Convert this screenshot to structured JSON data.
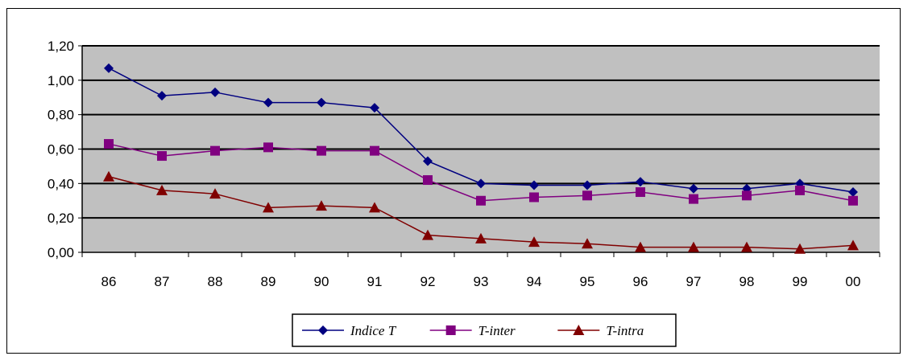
{
  "chart_data": {
    "type": "line",
    "categories": [
      "86",
      "87",
      "88",
      "89",
      "90",
      "91",
      "92",
      "93",
      "94",
      "95",
      "96",
      "97",
      "98",
      "99",
      "00"
    ],
    "ylim": [
      0,
      1.2
    ],
    "yticks": [
      "0,00",
      "0,20",
      "0,40",
      "0,60",
      "0,80",
      "1,00",
      "1,20"
    ],
    "grid": true,
    "plot_background": "#c0c0c0",
    "legend_position": "bottom-center",
    "series": [
      {
        "name": "Indice T",
        "color": "#000080",
        "marker": "diamond",
        "values": [
          1.07,
          0.91,
          0.93,
          0.87,
          0.87,
          0.84,
          0.53,
          0.4,
          0.39,
          0.39,
          0.41,
          0.37,
          0.37,
          0.4,
          0.35
        ]
      },
      {
        "name": "T-inter",
        "color": "#800080",
        "marker": "square",
        "values": [
          0.63,
          0.56,
          0.59,
          0.61,
          0.59,
          0.59,
          0.42,
          0.3,
          0.32,
          0.33,
          0.35,
          0.31,
          0.33,
          0.36,
          0.3
        ]
      },
      {
        "name": "T-intra",
        "color": "#800000",
        "marker": "triangle",
        "values": [
          0.44,
          0.36,
          0.34,
          0.26,
          0.27,
          0.26,
          0.1,
          0.08,
          0.06,
          0.05,
          0.03,
          0.03,
          0.03,
          0.02,
          0.04
        ]
      }
    ]
  }
}
